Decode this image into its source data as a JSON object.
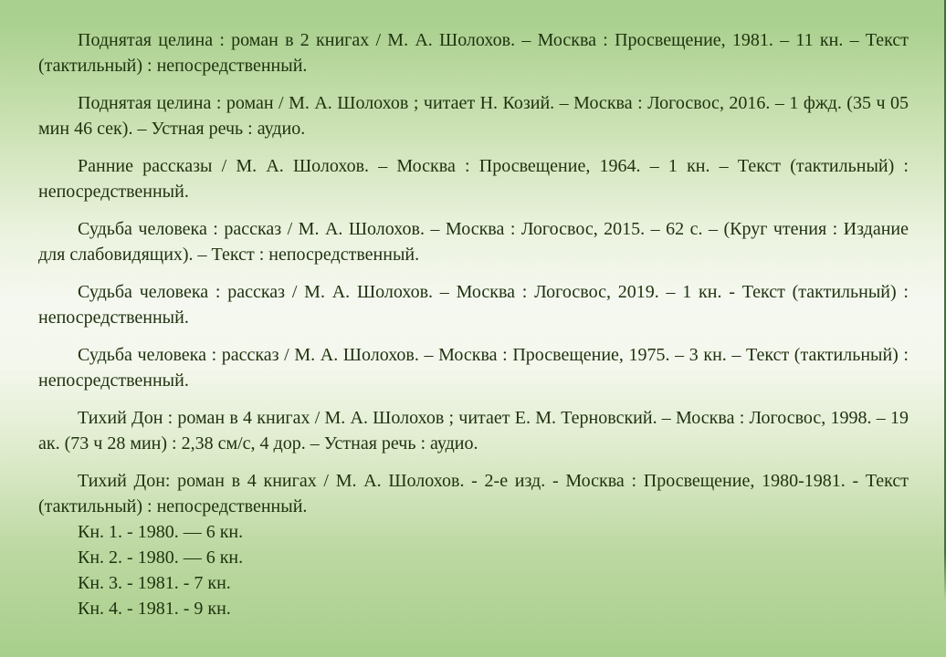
{
  "page": {
    "background_top_color": "#a9d08e",
    "background_middle_color": "#f5f8f0",
    "background_bottom_color": "#a8cf8c",
    "text_color": "#203310",
    "right_edge_line_color": "#41703a"
  },
  "bibliography": {
    "entries": [
      "Поднятая целина : роман в 2 книгах / М. А. Шолохов. – Москва : Просвещение, 1981. – 11 кн. – Текст (тактильный) : непосредственный.",
      "Поднятая целина : роман / М. А. Шолохов ; читает Н. Козий. – Москва : Логосвос, 2016. – 1 фжд. (35 ч 05 мин 46 сек). – Устная речь : аудио.",
      "Ранние рассказы / М. А. Шолохов. – Москва : Просвещение, 1964. – 1 кн. – Текст (тактильный) : непосредственный.",
      "Судьба человека : рассказ / М. А. Шолохов. – Москва : Логосвос, 2015. – 62 с. – (Круг чтения : Издание для слабовидящих). – Текст : непосредственный.",
      "Судьба человека : рассказ / М. А. Шолохов. – Москва : Логосвос, 2019. – 1 кн. - Текст (тактильный) : непосредственный.",
      "Судьба человека : рассказ / М. А. Шолохов. – Москва : Просвещение, 1975. – 3 кн. – Текст (тактильный) : непосредственный.",
      "Тихий Дон : роман в 4 книгах / М. А. Шолохов ; читает Е. М. Терновский. – Москва : Логосвос, 1998. – 19 ак. (73 ч 28 мин) : 2,38 см/с, 4 дор. – Устная речь : аудио.",
      "Тихий Дон: роман в 4 книгах / М. А. Шолохов. - 2-е изд. - Москва : Просвещение, 1980-1981. - Текст (тактильный) : непосредственный."
    ],
    "volumes": [
      "Кн. 1. - 1980. — 6 кн.",
      "Кн. 2. - 1980. — 6 кн.",
      "Кн. 3. - 1981. - 7 кн.",
      "Кн. 4. - 1981. - 9 кн."
    ]
  }
}
